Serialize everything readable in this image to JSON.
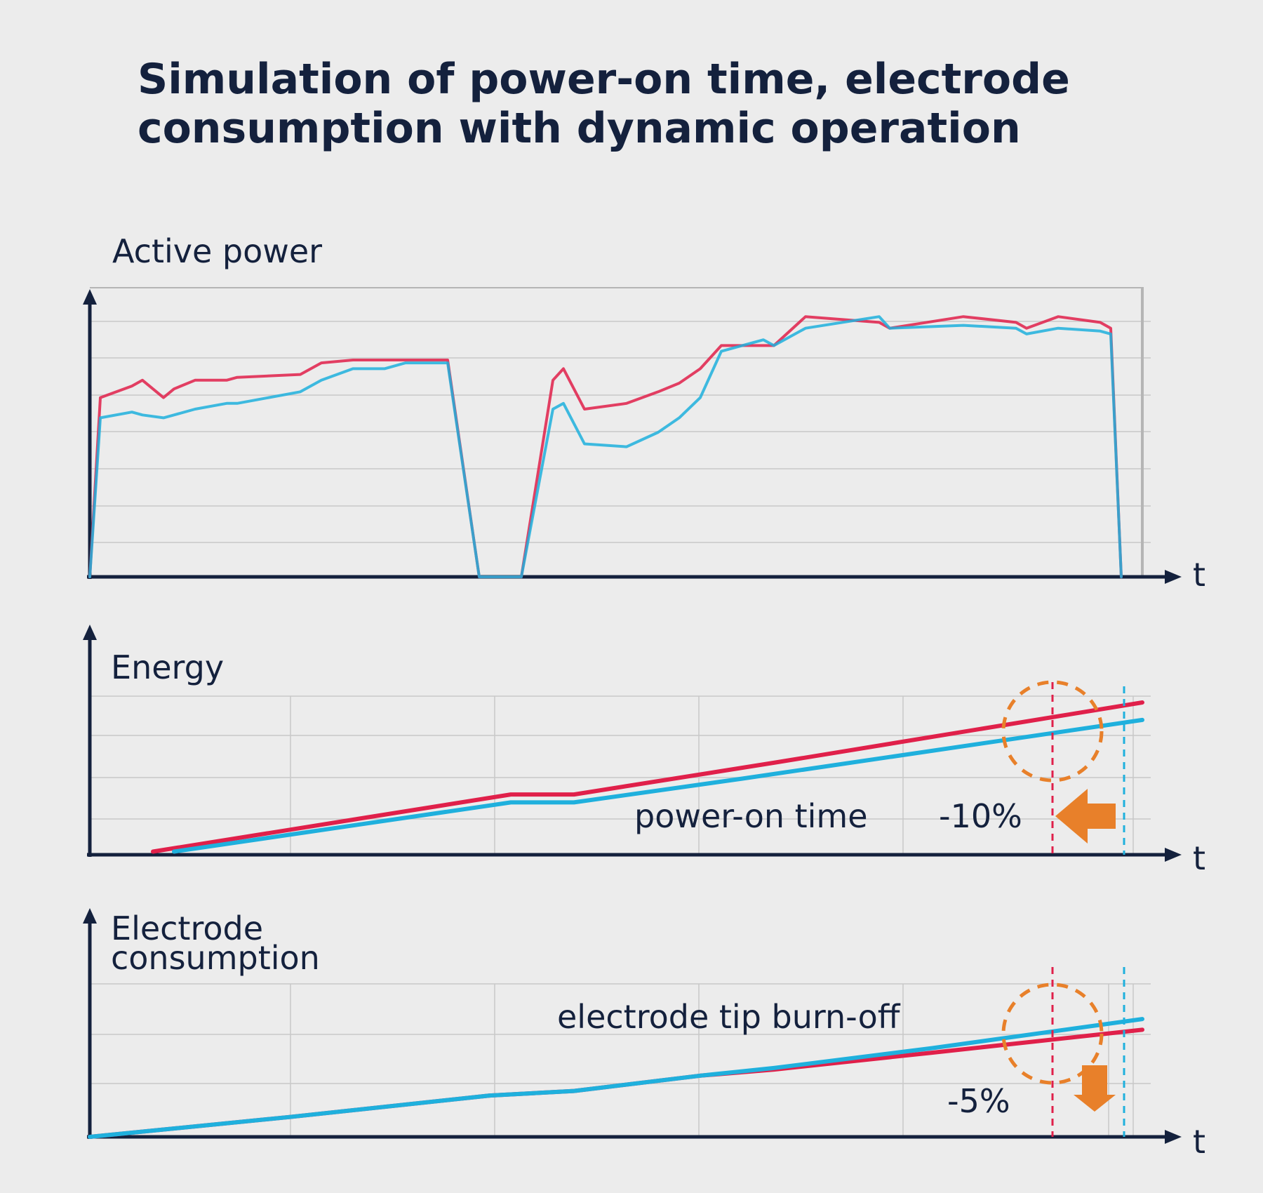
{
  "title": "Simulation of power-on time, electrode\nconsumption with dynamic operation",
  "colors": {
    "series_red": "#e0204a",
    "series_blue": "#1fb0dd",
    "highlight_orange": "#e8802a",
    "axis": "#14213d",
    "grid": "#c8c8c8",
    "background": "#ececec"
  },
  "chart_data": [
    {
      "type": "line",
      "title": "Active power",
      "xlabel": "t",
      "ylabel": "",
      "grid": true,
      "series": [
        {
          "color": "red",
          "x": [
            0,
            1,
            4,
            5,
            7,
            8,
            10,
            13,
            14,
            20,
            22,
            25,
            28,
            30,
            33,
            34,
            37,
            41,
            44,
            45,
            47,
            51,
            54,
            56,
            58,
            60,
            64,
            65,
            68,
            75,
            76,
            83,
            88,
            89,
            92,
            96,
            97,
            98
          ],
          "y": [
            0,
            0.62,
            0.66,
            0.68,
            0.62,
            0.65,
            0.68,
            0.68,
            0.69,
            0.7,
            0.74,
            0.75,
            0.75,
            0.75,
            0.75,
            0.75,
            0.0,
            0.0,
            0.68,
            0.72,
            0.58,
            0.6,
            0.64,
            0.67,
            0.72,
            0.8,
            0.8,
            0.8,
            0.9,
            0.88,
            0.86,
            0.9,
            0.88,
            0.86,
            0.9,
            0.88,
            0.86,
            0.0
          ]
        },
        {
          "color": "blue",
          "x": [
            0,
            1,
            4,
            5,
            7,
            8,
            10,
            13,
            14,
            20,
            22,
            25,
            28,
            30,
            33,
            34,
            37,
            41,
            44,
            45,
            47,
            51,
            54,
            56,
            58,
            60,
            64,
            65,
            68,
            75,
            76,
            83,
            88,
            89,
            92,
            96,
            97,
            98
          ],
          "y": [
            0,
            0.55,
            0.57,
            0.56,
            0.55,
            0.56,
            0.58,
            0.6,
            0.6,
            0.64,
            0.68,
            0.72,
            0.72,
            0.74,
            0.74,
            0.74,
            0.0,
            0.0,
            0.58,
            0.6,
            0.46,
            0.45,
            0.5,
            0.55,
            0.62,
            0.78,
            0.82,
            0.8,
            0.86,
            0.9,
            0.86,
            0.87,
            0.86,
            0.84,
            0.86,
            0.85,
            0.84,
            0.0
          ]
        }
      ]
    },
    {
      "type": "line",
      "title": "Energy",
      "xlabel": "t",
      "ylabel": "",
      "grid": true,
      "annotation": "power-on time",
      "delta_label": "-10%",
      "series": [
        {
          "color": "red",
          "x": [
            6,
            40,
            46,
            65,
            100
          ],
          "y": [
            0.02,
            0.38,
            0.38,
            0.58,
            0.96
          ]
        },
        {
          "color": "blue",
          "x": [
            8,
            40,
            46,
            62,
            100
          ],
          "y": [
            0.02,
            0.33,
            0.33,
            0.48,
            0.85
          ]
        }
      ]
    },
    {
      "type": "line",
      "title": "Electrode\nconsumption",
      "xlabel": "t",
      "ylabel": "",
      "grid": true,
      "annotation": "electrode tip burn-off",
      "delta_label": "-5%",
      "series": [
        {
          "color": "red",
          "x": [
            0,
            19,
            38,
            46,
            58,
            65,
            80,
            100
          ],
          "y": [
            0.0,
            0.13,
            0.27,
            0.3,
            0.4,
            0.44,
            0.55,
            0.7
          ]
        },
        {
          "color": "blue",
          "x": [
            0,
            19,
            38,
            46,
            58,
            65,
            80,
            100
          ],
          "y": [
            0.0,
            0.13,
            0.27,
            0.3,
            0.4,
            0.45,
            0.58,
            0.77
          ]
        }
      ]
    }
  ]
}
